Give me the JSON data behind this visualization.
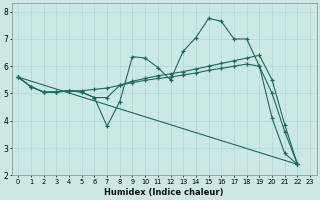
{
  "xlabel": "Humidex (Indice chaleur)",
  "background_color": "#cce8e4",
  "grid_color": "#b0d8d4",
  "line_color": "#1a6b5a",
  "xlim": [
    -0.5,
    23.5
  ],
  "ylim": [
    2.0,
    8.3
  ],
  "yticks": [
    2,
    3,
    4,
    5,
    6,
    7,
    8
  ],
  "xticks": [
    0,
    1,
    2,
    3,
    4,
    5,
    6,
    7,
    8,
    9,
    10,
    11,
    12,
    13,
    14,
    15,
    16,
    17,
    18,
    19,
    20,
    21,
    22,
    23
  ],
  "line1_x": [
    0,
    1,
    2,
    3,
    4,
    5,
    6,
    7,
    8,
    9,
    10,
    11,
    12,
    13,
    14,
    15,
    16,
    17,
    18,
    19,
    20,
    21,
    22
  ],
  "line1_y": [
    5.6,
    5.25,
    5.05,
    5.05,
    5.1,
    5.05,
    4.85,
    3.8,
    4.7,
    6.35,
    6.3,
    5.95,
    5.5,
    6.55,
    7.05,
    7.75,
    7.65,
    7.0,
    7.0,
    6.0,
    4.1,
    2.8,
    2.4
  ],
  "line2_x": [
    0,
    1,
    2,
    3,
    4,
    5,
    6,
    7,
    8,
    9,
    10,
    11,
    12,
    13,
    14,
    15,
    16,
    17,
    18,
    19,
    20,
    21,
    22
  ],
  "line2_y": [
    5.6,
    5.25,
    5.05,
    5.05,
    5.1,
    5.05,
    4.85,
    4.85,
    5.3,
    5.45,
    5.55,
    5.65,
    5.72,
    5.8,
    5.9,
    6.0,
    6.1,
    6.2,
    6.3,
    6.4,
    5.5,
    3.85,
    2.4
  ],
  "line3_x": [
    0,
    22
  ],
  "line3_y": [
    5.6,
    2.4
  ],
  "line4_x": [
    0,
    1,
    2,
    3,
    4,
    5,
    6,
    7,
    8,
    9,
    10,
    11,
    12,
    13,
    14,
    15,
    16,
    17,
    18,
    19,
    20,
    21,
    22
  ],
  "line4_y": [
    5.6,
    5.25,
    5.05,
    5.05,
    5.1,
    5.1,
    5.15,
    5.2,
    5.3,
    5.4,
    5.48,
    5.55,
    5.6,
    5.68,
    5.75,
    5.85,
    5.92,
    6.0,
    6.08,
    6.0,
    5.0,
    3.6,
    2.4
  ]
}
